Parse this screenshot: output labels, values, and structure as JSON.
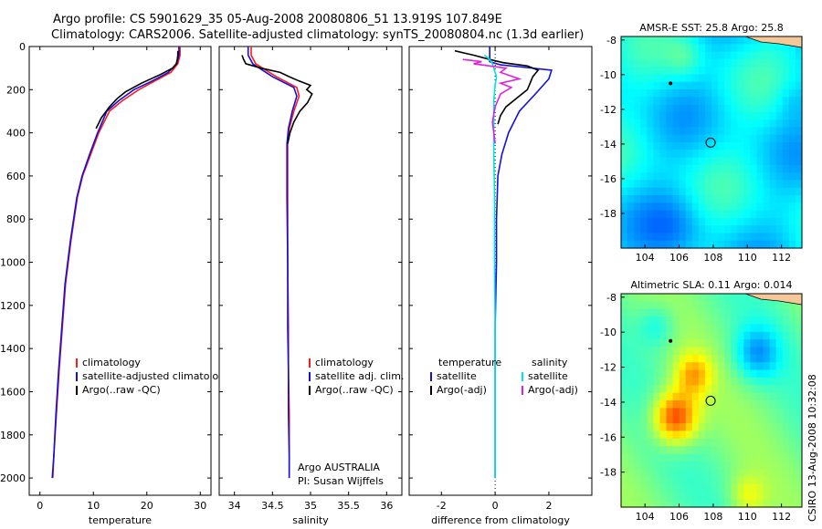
{
  "header": {
    "line1": "Argo profile: CS 5901629_35 05-Aug-2008 20080806_51 13.919S 107.849E",
    "line2": "Climatology: CARS2006. Satellite-adjusted climatology: synTS_20080804.nc (1.3d earlier)"
  },
  "side_label": "CSIRO 13-Aug-2008 10:32:08",
  "colors": {
    "red": "#ff1a1a",
    "blue": "#1010e0",
    "black": "#000000",
    "cyan": "#00e5e5",
    "magenta": "#e020e0"
  },
  "chart_data": [
    {
      "type": "line",
      "id": "temperature",
      "xlabel": "temperature",
      "ylim": [
        2080,
        0
      ],
      "xlim": [
        -2,
        32
      ],
      "xticks": [
        "0",
        "10",
        "20",
        "30"
      ],
      "yticks": [
        "0",
        "200",
        "400",
        "600",
        "800",
        "1000",
        "1200",
        "1400",
        "1600",
        "1800",
        "2000"
      ],
      "legend": [
        "climatology",
        "satellite-adjusted climatology",
        "Argo(..raw -QC)"
      ],
      "series": [
        {
          "name": "climatology",
          "color": "red",
          "x": [
            26.2,
            26.2,
            26.0,
            25.8,
            24.5,
            21.5,
            18.5,
            15.5,
            13.0,
            11.0,
            9.5,
            8.0,
            7.0,
            5.8,
            4.8,
            4.2,
            3.6,
            3.1,
            2.6,
            2.4
          ],
          "y": [
            0,
            40,
            60,
            80,
            120,
            160,
            200,
            250,
            300,
            400,
            500,
            600,
            700,
            900,
            1100,
            1300,
            1500,
            1700,
            1900,
            2000
          ]
        },
        {
          "name": "satellite-adjusted climatology",
          "color": "blue",
          "x": [
            26.0,
            26.0,
            25.8,
            25.6,
            24.0,
            21.0,
            17.6,
            14.8,
            12.5,
            10.8,
            9.3,
            7.9,
            6.9,
            5.7,
            4.7,
            4.1,
            3.5,
            3.0,
            2.6,
            2.3
          ],
          "y": [
            0,
            40,
            60,
            80,
            120,
            160,
            200,
            250,
            300,
            400,
            500,
            600,
            700,
            900,
            1100,
            1300,
            1500,
            1700,
            1900,
            2000
          ]
        },
        {
          "name": "Argo(..raw -QC)",
          "color": "black",
          "x": [
            25.8,
            25.8,
            25.7,
            25.5,
            24.8,
            22.5,
            19.0,
            16.0,
            14.5,
            13.0,
            11.5,
            10.5
          ],
          "y": [
            20,
            40,
            60,
            80,
            100,
            130,
            170,
            210,
            240,
            280,
            330,
            380
          ]
        }
      ]
    },
    {
      "type": "line",
      "id": "salinity",
      "xlabel": "salinity",
      "ylim": [
        2080,
        0
      ],
      "xlim": [
        33.8,
        36.2
      ],
      "xticks": [
        "34",
        "34.5",
        "35",
        "35.5",
        "36"
      ],
      "legend": [
        "climatology",
        "satellite adj. clim.",
        "Argo(..raw -QC)"
      ],
      "annotation": [
        "Argo AUSTRALIA",
        "PI: Susan Wijffels"
      ],
      "series": [
        {
          "name": "climatology",
          "color": "red",
          "x": [
            34.22,
            34.22,
            34.28,
            34.55,
            34.82,
            34.85,
            34.78,
            34.72,
            34.7,
            34.7,
            34.7,
            34.7,
            34.71,
            34.71,
            34.72,
            34.72,
            34.72
          ],
          "y": [
            0,
            40,
            80,
            140,
            190,
            230,
            300,
            380,
            450,
            500,
            700,
            1000,
            1300,
            1500,
            1700,
            1900,
            2000
          ]
        },
        {
          "name": "satellite adj. clim.",
          "color": "blue",
          "x": [
            34.18,
            34.18,
            34.24,
            34.5,
            34.78,
            34.82,
            34.76,
            34.71,
            34.69,
            34.69,
            34.69,
            34.7,
            34.7,
            34.71,
            34.71,
            34.72,
            34.72
          ],
          "y": [
            0,
            40,
            80,
            140,
            190,
            230,
            300,
            380,
            450,
            500,
            700,
            1000,
            1300,
            1500,
            1700,
            1900,
            2000
          ]
        },
        {
          "name": "Argo(..raw -QC)",
          "color": "black",
          "x": [
            34.1,
            34.12,
            34.15,
            34.35,
            34.6,
            34.72,
            34.85,
            35.0,
            34.95,
            35.02,
            34.96,
            34.86,
            34.78,
            34.73,
            34.7
          ],
          "y": [
            40,
            60,
            80,
            100,
            120,
            140,
            160,
            180,
            200,
            220,
            260,
            300,
            350,
            400,
            450
          ]
        }
      ]
    },
    {
      "type": "line",
      "id": "difference",
      "xlabel": "difference from climatology",
      "ylim": [
        2080,
        0
      ],
      "xlim": [
        -3.2,
        3.6
      ],
      "xticks": [
        "-2",
        "0",
        "2"
      ],
      "legend": [
        "temperature",
        "satellite",
        "Argo(-adj)",
        "salinity",
        "satellite",
        "Argo(-adj)"
      ],
      "series": [
        {
          "name": "temperature satellite",
          "color": "blue",
          "x": [
            -0.2,
            -0.2,
            -0.2,
            0.2,
            1.0,
            2.1,
            2.0,
            1.5,
            0.9,
            0.5,
            0.25,
            0.1,
            0.05,
            0.05,
            0.0,
            0.0,
            0.0
          ],
          "y": [
            0,
            40,
            70,
            85,
            95,
            110,
            150,
            220,
            300,
            400,
            500,
            600,
            800,
            1000,
            1300,
            1700,
            2000
          ]
        },
        {
          "name": "temperature Argo(-adj)",
          "color": "black",
          "x": [
            -1.5,
            -0.8,
            -0.2,
            0.3,
            1.2,
            1.6,
            1.4,
            1.3,
            1.2,
            0.8,
            0.4,
            0.2,
            0.1
          ],
          "y": [
            20,
            40,
            60,
            75,
            90,
            110,
            140,
            170,
            200,
            240,
            280,
            320,
            360
          ]
        },
        {
          "name": "salinity satellite",
          "color": "cyan",
          "x": [
            -0.4,
            -0.2,
            -0.1,
            -0.05,
            0.05,
            0.0,
            -0.05,
            -0.05,
            -0.05,
            -0.02,
            -0.02,
            0.0,
            0.0,
            0.0,
            0.0
          ],
          "y": [
            40,
            60,
            80,
            100,
            140,
            180,
            250,
            350,
            500,
            700,
            1000,
            1300,
            1600,
            1800,
            2000
          ]
        },
        {
          "name": "salinity Argo(-adj)",
          "color": "magenta",
          "x": [
            -1.2,
            -0.5,
            -0.8,
            0.4,
            0.2,
            0.9,
            0.2,
            0.6,
            0.2,
            0.0,
            -0.1,
            0.0
          ],
          "y": [
            60,
            70,
            80,
            100,
            120,
            150,
            170,
            190,
            220,
            280,
            350,
            450
          ]
        }
      ]
    },
    {
      "type": "heatmap",
      "id": "sst-map",
      "title": "AMSR-E SST: 25.8 Argo: 25.8",
      "xticks": [
        "104",
        "106",
        "108",
        "110",
        "112"
      ],
      "yticks": [
        "-8",
        "-10",
        "-12",
        "-14",
        "-16",
        "-18"
      ],
      "xlim": [
        102.6,
        113.2
      ],
      "ylim": [
        -20,
        -7.8
      ],
      "argo_position": [
        107.85,
        -13.92
      ],
      "prev_position": [
        105.5,
        -10.5
      ],
      "palette": "jet"
    },
    {
      "type": "heatmap",
      "id": "sla-map",
      "title": "Altimetric SLA: 0.11 Argo: 0.014",
      "xticks": [
        "104",
        "106",
        "108",
        "110",
        "112"
      ],
      "yticks": [
        "-8",
        "-10",
        "-12",
        "-14",
        "-16",
        "-18"
      ],
      "xlim": [
        102.6,
        113.2
      ],
      "ylim": [
        -20,
        -7.8
      ],
      "argo_position": [
        107.85,
        -13.92
      ],
      "prev_position": [
        105.5,
        -10.5
      ],
      "palette": "jet"
    }
  ]
}
